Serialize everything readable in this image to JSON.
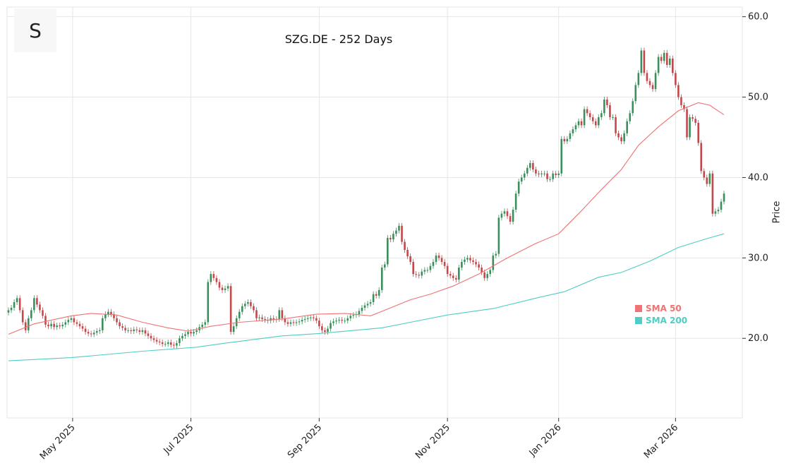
{
  "logo_letter": "S",
  "chart_data": {
    "type": "candlestick",
    "title": "SZG.DE - 252 Days",
    "xlabel": "",
    "ylabel": "Price",
    "ylim": [
      10.1,
      61.2
    ],
    "y_ticks": [
      20,
      30,
      40,
      50,
      60
    ],
    "y_tick_labels": [
      "20.0",
      "30.0",
      "40.0",
      "50.0",
      "60.0"
    ],
    "x_ticks": [
      {
        "index": 22.5,
        "label": "May 2025"
      },
      {
        "index": 64,
        "label": "Jul 2025"
      },
      {
        "index": 109,
        "label": "Sep 2025"
      },
      {
        "index": 154,
        "label": "Nov 2025"
      },
      {
        "index": 193,
        "label": "Jan 2026"
      },
      {
        "index": 234,
        "label": "Mar 2026"
      }
    ],
    "grid": true,
    "legend_position": "lower-right",
    "colors": {
      "up": "#3a8f5c",
      "down": "#c2484b",
      "sma50": "#f07272",
      "sma200": "#4ecdc4",
      "grid": "#e6e6e6"
    },
    "close": [
      23.5,
      23.8,
      24.5,
      25.0,
      23.5,
      22.0,
      21.0,
      22.5,
      23.5,
      25.0,
      24.2,
      23.5,
      22.8,
      21.7,
      21.5,
      21.8,
      21.4,
      21.6,
      21.5,
      21.7,
      22.0,
      22.3,
      22.5,
      22.0,
      21.8,
      21.5,
      21.2,
      20.8,
      20.6,
      20.5,
      20.7,
      20.9,
      21.0,
      22.5,
      23.0,
      23.3,
      23.0,
      22.5,
      22.0,
      21.5,
      21.3,
      21.0,
      21.0,
      20.9,
      21.1,
      21.0,
      20.8,
      21.0,
      20.6,
      20.3,
      20.0,
      19.8,
      19.6,
      19.5,
      19.3,
      19.3,
      19.5,
      19.2,
      19.1,
      19.4,
      20.0,
      20.3,
      20.5,
      20.8,
      20.6,
      20.8,
      21.0,
      21.4,
      21.7,
      22.0,
      27.0,
      28.0,
      27.5,
      27.0,
      26.3,
      26.0,
      26.2,
      26.5,
      20.8,
      21.5,
      22.5,
      23.3,
      24.0,
      24.3,
      24.5,
      24.0,
      23.5,
      22.5,
      22.6,
      22.4,
      22.3,
      22.2,
      22.5,
      22.3,
      22.4,
      23.5,
      22.5,
      22.0,
      21.8,
      22.0,
      21.9,
      22.0,
      22.1,
      22.3,
      22.4,
      22.5,
      22.6,
      22.5,
      22.2,
      21.5,
      21.0,
      20.8,
      21.2,
      21.9,
      22.1,
      22.2,
      22.3,
      22.2,
      22.2,
      22.5,
      22.8,
      22.9,
      23.0,
      23.4,
      23.8,
      24.1,
      24.3,
      24.5,
      25.5,
      25.3,
      26.0,
      28.8,
      29.2,
      32.5,
      32.3,
      33.0,
      33.4,
      34.0,
      32.0,
      31.0,
      30.2,
      29.5,
      28.0,
      27.9,
      27.8,
      28.3,
      28.5,
      28.5,
      29.0,
      29.5,
      30.3,
      30.0,
      29.5,
      29.0,
      28.0,
      27.8,
      27.5,
      27.3,
      28.8,
      29.5,
      29.8,
      30.0,
      29.7,
      29.5,
      29.2,
      28.8,
      28.2,
      27.5,
      28.0,
      28.5,
      30.3,
      30.5,
      35.0,
      35.5,
      35.8,
      35.2,
      34.5,
      36.0,
      38.0,
      39.5,
      40.0,
      40.5,
      41.2,
      41.8,
      41.0,
      40.5,
      40.4,
      40.5,
      40.5,
      39.8,
      39.8,
      40.5,
      40.3,
      40.5,
      44.8,
      44.5,
      44.8,
      45.5,
      46.0,
      46.5,
      47.0,
      46.5,
      48.5,
      48.0,
      47.5,
      47.0,
      46.5,
      47.5,
      48.0,
      49.7,
      49.0,
      47.5,
      47.5,
      45.5,
      45.0,
      44.5,
      45.5,
      47.0,
      48.0,
      49.5,
      51.5,
      53.0,
      55.8,
      53.0,
      52.0,
      51.5,
      51.0,
      53.0,
      55.0,
      54.5,
      55.5,
      54.0,
      54.8,
      53.0,
      51.5,
      50.0,
      49.0,
      48.5,
      45.0,
      47.5,
      47.3,
      46.8,
      44.3,
      40.8,
      40.0,
      39.2,
      40.5,
      35.5,
      35.8,
      36.0,
      37.0,
      38.0
    ],
    "series": [
      {
        "name": "SMA 50",
        "points": [
          [
            0,
            20.5
          ],
          [
            9,
            21.8
          ],
          [
            22,
            22.8
          ],
          [
            29,
            23.1
          ],
          [
            38,
            22.9
          ],
          [
            47,
            22.0
          ],
          [
            56,
            21.3
          ],
          [
            63,
            20.9
          ],
          [
            71,
            21.5
          ],
          [
            81,
            22.0
          ],
          [
            96,
            22.4
          ],
          [
            108,
            23.0
          ],
          [
            118,
            23.1
          ],
          [
            127,
            22.8
          ],
          [
            132,
            23.5
          ],
          [
            141,
            24.8
          ],
          [
            148,
            25.5
          ],
          [
            156,
            26.5
          ],
          [
            165,
            28.0
          ],
          [
            175,
            30.0
          ],
          [
            185,
            31.8
          ],
          [
            193,
            33.0
          ],
          [
            200,
            35.5
          ],
          [
            208,
            38.5
          ],
          [
            215,
            41.0
          ],
          [
            221,
            44.0
          ],
          [
            228,
            46.3
          ],
          [
            235,
            48.3
          ],
          [
            242,
            49.3
          ],
          [
            246,
            49.0
          ],
          [
            251,
            47.8
          ]
        ]
      },
      {
        "name": "SMA 200",
        "points": [
          [
            0,
            17.2
          ],
          [
            22,
            17.6
          ],
          [
            47,
            18.4
          ],
          [
            66,
            18.9
          ],
          [
            76,
            19.4
          ],
          [
            96,
            20.3
          ],
          [
            109,
            20.6
          ],
          [
            131,
            21.3
          ],
          [
            141,
            22.0
          ],
          [
            154,
            22.9
          ],
          [
            170,
            23.7
          ],
          [
            185,
            25.0
          ],
          [
            195,
            25.8
          ],
          [
            207,
            27.6
          ],
          [
            215,
            28.2
          ],
          [
            225,
            29.6
          ],
          [
            235,
            31.3
          ],
          [
            245,
            32.4
          ],
          [
            251,
            33.0
          ]
        ]
      }
    ]
  }
}
